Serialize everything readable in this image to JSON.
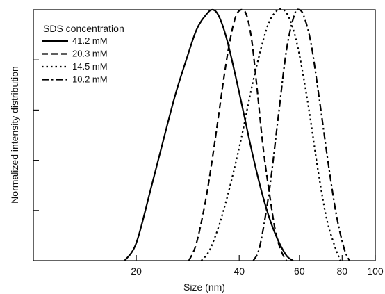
{
  "chart_data": {
    "type": "line",
    "xlabel": "Size (nm)",
    "ylabel": "Normalized intensity distribution",
    "xscale": "log",
    "xlim": [
      10,
      100
    ],
    "ylim": [
      0,
      1
    ],
    "x_ticks": [
      20,
      40,
      60,
      80,
      100
    ],
    "x_tick_labels": [
      "20",
      "40",
      "60",
      "80",
      "100"
    ],
    "grid": false,
    "legend": {
      "title": "SDS concentration",
      "placement": "top-left"
    },
    "series": [
      {
        "name": "41.2 mM",
        "style": "solid",
        "points": [
          [
            18.5,
            0
          ],
          [
            20,
            0.07
          ],
          [
            22,
            0.28
          ],
          [
            24,
            0.48
          ],
          [
            26,
            0.66
          ],
          [
            28,
            0.8
          ],
          [
            30,
            0.92
          ],
          [
            32,
            0.98
          ],
          [
            33.5,
            1.0
          ],
          [
            35,
            0.97
          ],
          [
            37,
            0.87
          ],
          [
            40,
            0.67
          ],
          [
            43,
            0.47
          ],
          [
            46,
            0.3
          ],
          [
            49,
            0.17
          ],
          [
            52,
            0.08
          ],
          [
            55,
            0.02
          ],
          [
            57.5,
            0
          ]
        ]
      },
      {
        "name": "20.3 mM",
        "style": "dashed",
        "points": [
          [
            28.5,
            0
          ],
          [
            30,
            0.07
          ],
          [
            32,
            0.25
          ],
          [
            34,
            0.48
          ],
          [
            36,
            0.72
          ],
          [
            37.5,
            0.87
          ],
          [
            39,
            0.97
          ],
          [
            40.5,
            1.0
          ],
          [
            42,
            0.98
          ],
          [
            43.5,
            0.88
          ],
          [
            45,
            0.7
          ],
          [
            47,
            0.45
          ],
          [
            49,
            0.27
          ],
          [
            51,
            0.12
          ],
          [
            53,
            0.04
          ],
          [
            55,
            0
          ]
        ]
      },
      {
        "name": "14.5 mM",
        "style": "dotted",
        "points": [
          [
            31,
            0
          ],
          [
            33,
            0.05
          ],
          [
            36,
            0.2
          ],
          [
            40,
            0.45
          ],
          [
            44,
            0.72
          ],
          [
            48,
            0.92
          ],
          [
            51,
            0.99
          ],
          [
            54,
            1.0
          ],
          [
            57,
            0.94
          ],
          [
            60,
            0.82
          ],
          [
            64,
            0.6
          ],
          [
            68,
            0.36
          ],
          [
            72,
            0.17
          ],
          [
            76,
            0.06
          ],
          [
            79,
            0
          ]
        ]
      },
      {
        "name": "10.2 mM",
        "style": "dashdot",
        "points": [
          [
            44,
            0
          ],
          [
            46,
            0.06
          ],
          [
            49,
            0.28
          ],
          [
            52,
            0.57
          ],
          [
            55,
            0.84
          ],
          [
            58,
            0.98
          ],
          [
            60,
            1.0
          ],
          [
            62,
            0.97
          ],
          [
            65,
            0.86
          ],
          [
            69,
            0.62
          ],
          [
            73,
            0.38
          ],
          [
            77,
            0.18
          ],
          [
            81,
            0.05
          ],
          [
            84,
            0
          ]
        ]
      }
    ]
  }
}
